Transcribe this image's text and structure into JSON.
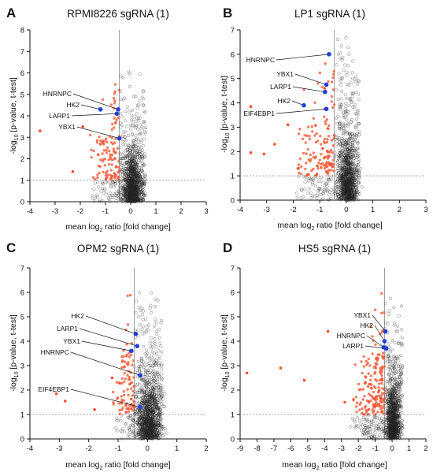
{
  "figure": {
    "panels": [
      {
        "letter": "A",
        "title": "RPMI8226 sgRNA (1)"
      },
      {
        "letter": "B",
        "title": "LP1 sgRNA (1)"
      },
      {
        "letter": "C",
        "title": "OPM2 sgRNA (1)"
      },
      {
        "letter": "D",
        "title": "HS5 sgRNA (1)"
      }
    ],
    "xlabel": {
      "pre": "mean log",
      "sub": "2",
      "post": " ratio [fold change]"
    },
    "ylabel": {
      "pre": "-log",
      "sub": "10",
      "post": " [p-value, t-test]"
    },
    "colors": {
      "significant": "#f4532f",
      "highlight": "#1f3fd8",
      "background": "#222222",
      "reference_line": "#888888"
    }
  },
  "chart_data": [
    {
      "panel": "A",
      "type": "scatter",
      "title": "RPMI8226 sgRNA (1)",
      "xlabel": "mean log2 ratio [fold change]",
      "ylabel": "-log10 [p-value, t-test]",
      "xlim": [
        -4,
        3
      ],
      "ylim": [
        0,
        8
      ],
      "xticks": [
        -4,
        -3,
        -2,
        -1,
        0,
        1,
        2,
        3
      ],
      "yticks": [
        0,
        1,
        2,
        3,
        4,
        5,
        6,
        7,
        8
      ],
      "reference_lines": {
        "x": -0.45,
        "y": 1
      },
      "highlighted": [
        {
          "label": "HNRNPC",
          "x": -0.5,
          "y": 4.3
        },
        {
          "label": "HK2",
          "x": -1.2,
          "y": 4.3
        },
        {
          "label": "LARP1",
          "x": -0.55,
          "y": 4.1
        },
        {
          "label": "YBX1",
          "x": -0.45,
          "y": 2.95
        }
      ],
      "significant_outliers": [
        {
          "x": -3.6,
          "y": 3.3
        },
        {
          "x": -2.3,
          "y": 1.4
        },
        {
          "x": -1.9,
          "y": 3.5
        }
      ],
      "cloud": {
        "x_min": -1.7,
        "x_max": 0.6,
        "y_max": 6.2
      }
    },
    {
      "panel": "B",
      "type": "scatter",
      "title": "LP1 sgRNA (1)",
      "xlabel": "mean log2 ratio [fold change]",
      "ylabel": "-log10 [p-value, t-test]",
      "xlim": [
        -4,
        3
      ],
      "ylim": [
        0,
        7
      ],
      "xticks": [
        -4,
        -3,
        -2,
        -1,
        0,
        1,
        2,
        3
      ],
      "yticks": [
        0,
        1,
        2,
        3,
        4,
        5,
        6,
        7
      ],
      "reference_lines": {
        "x": -0.45,
        "y": 1
      },
      "highlighted": [
        {
          "label": "HNRNPC",
          "x": -0.65,
          "y": 6.0
        },
        {
          "label": "YBX1",
          "x": -0.75,
          "y": 4.75
        },
        {
          "label": "LARP1",
          "x": -0.8,
          "y": 4.45
        },
        {
          "label": "HK2",
          "x": -1.6,
          "y": 3.9
        },
        {
          "label": "EIF4EBP1",
          "x": -0.75,
          "y": 3.75
        }
      ],
      "significant_outliers": [
        {
          "x": -3.6,
          "y": 3.85
        },
        {
          "x": -3.1,
          "y": 1.9
        },
        {
          "x": -3.6,
          "y": 1.95
        },
        {
          "x": -2.2,
          "y": 3.1
        },
        {
          "x": -2.7,
          "y": 2.3
        }
      ],
      "cloud": {
        "x_min": -2.0,
        "x_max": 0.5,
        "y_max": 6.8
      }
    },
    {
      "panel": "C",
      "type": "scatter",
      "title": "OPM2 sgRNA (1)",
      "xlabel": "mean log2 ratio [fold change]",
      "ylabel": "-log10 [p-value, t-test]",
      "xlim": [
        -4,
        2
      ],
      "ylim": [
        0,
        7
      ],
      "xticks": [
        -4,
        -3,
        -2,
        -1,
        0,
        1,
        2
      ],
      "yticks": [
        0,
        1,
        2,
        3,
        4,
        5,
        6,
        7
      ],
      "reference_lines": {
        "x": -0.45,
        "y": 1
      },
      "highlighted": [
        {
          "label": "HK2",
          "x": -0.4,
          "y": 4.3
        },
        {
          "label": "LARP1",
          "x": -0.35,
          "y": 3.8
        },
        {
          "label": "YBX1",
          "x": -0.55,
          "y": 3.6
        },
        {
          "label": "HNRNPC",
          "x": -0.25,
          "y": 2.6
        },
        {
          "label": "EIF4EBP1",
          "x": -0.25,
          "y": 1.3
        }
      ],
      "significant_outliers": [
        {
          "x": -3.1,
          "y": 1.85
        },
        {
          "x": -2.8,
          "y": 1.55
        },
        {
          "x": -1.8,
          "y": 1.2
        },
        {
          "x": -1.2,
          "y": 2.5
        }
      ],
      "cloud": {
        "x_min": -1.2,
        "x_max": 0.5,
        "y_max": 6.3
      }
    },
    {
      "panel": "D",
      "type": "scatter",
      "title": "HS5 sgRNA (1)",
      "xlabel": "mean log2 ratio [fold change]",
      "ylabel": "-log10 [p-value, t-test]",
      "xlim": [
        -9,
        2
      ],
      "ylim": [
        0,
        7
      ],
      "xticks": [
        -9,
        -8,
        -7,
        -6,
        -5,
        -4,
        -3,
        -2,
        -1,
        0,
        1,
        2
      ],
      "yticks": [
        0,
        1,
        2,
        3,
        4,
        5,
        6,
        7
      ],
      "reference_lines": {
        "x": -0.45,
        "y": 1
      },
      "highlighted": [
        {
          "label": "YBX1",
          "x": -0.4,
          "y": 4.4
        },
        {
          "label": "HK2",
          "x": -0.45,
          "y": 4.0
        },
        {
          "label": "HNRNPC",
          "x": -0.5,
          "y": 3.75
        },
        {
          "label": "LARP1",
          "x": -0.35,
          "y": 3.7
        }
      ],
      "significant_outliers": [
        {
          "x": -8.6,
          "y": 2.7
        },
        {
          "x": -6.6,
          "y": 2.9
        },
        {
          "x": -5.2,
          "y": 2.4
        },
        {
          "x": -3.8,
          "y": 4.4
        },
        {
          "x": -2.8,
          "y": 1.5
        }
      ],
      "cloud": {
        "x_min": -2.5,
        "x_max": 0.6,
        "y_max": 6.2
      }
    }
  ]
}
